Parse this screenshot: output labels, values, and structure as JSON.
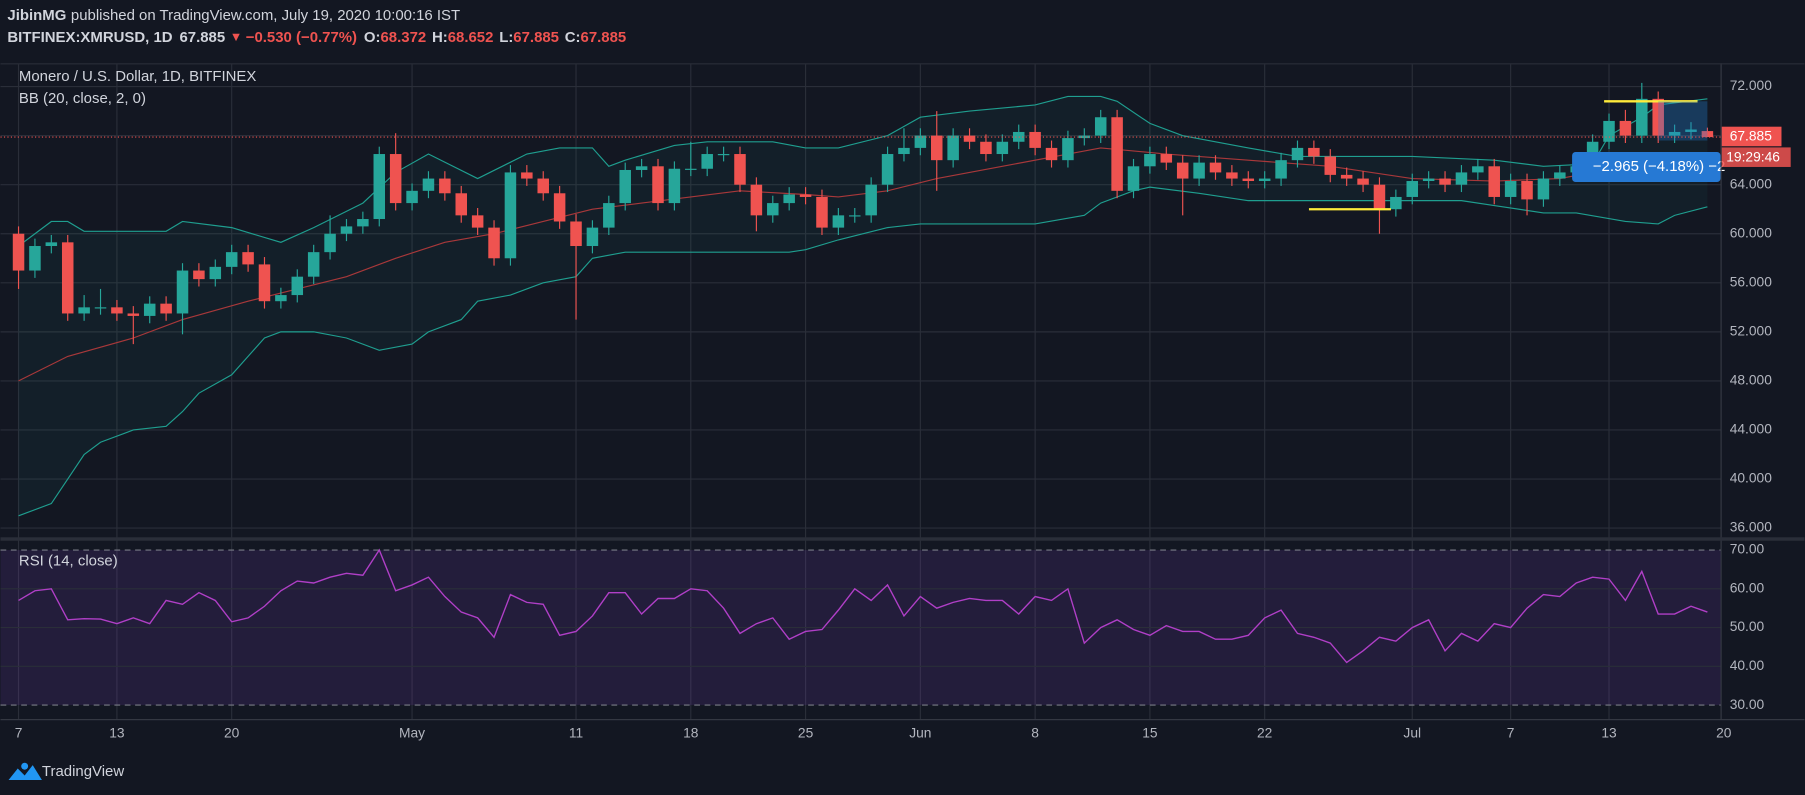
{
  "header": {
    "publisher": "JibinMG",
    "published": "published on TradingView.com, July 19, 2020 10:00:16 IST",
    "symbol": "BITFINEX:XMRUSD, 1D",
    "last": "67.885",
    "arrow": "▼",
    "change": "−0.530 (−0.77%)",
    "ohlc": [
      {
        "key": "O:",
        "value": "68.372"
      },
      {
        "key": "H:",
        "value": "68.652"
      },
      {
        "key": "L:",
        "value": "67.885"
      },
      {
        "key": "C:",
        "value": "67.885"
      }
    ]
  },
  "chart_data": [
    {
      "type": "candlestick",
      "title": "Monero / U.S. Dollar, 1D, BITFINEX",
      "up_color": "#26a69a",
      "down_color": "#ef5350",
      "xlim": [
        -1.1,
        103.8
      ],
      "ylim": [
        35.25,
        73.9
      ],
      "xticks": [
        {
          "value": 0,
          "label": "7"
        },
        {
          "value": 6,
          "label": "13"
        },
        {
          "value": 13,
          "label": "20"
        },
        {
          "value": 24,
          "label": "May"
        },
        {
          "value": 34,
          "label": "11"
        },
        {
          "value": 41,
          "label": "18"
        },
        {
          "value": 48,
          "label": "25"
        },
        {
          "value": 55,
          "label": "Jun"
        },
        {
          "value": 62,
          "label": "8"
        },
        {
          "value": 69,
          "label": "15"
        },
        {
          "value": 76,
          "label": "22"
        },
        {
          "value": 85,
          "label": "Jul"
        },
        {
          "value": 91,
          "label": "7"
        },
        {
          "value": 97,
          "label": "13"
        },
        {
          "value": 104,
          "label": "20"
        }
      ],
      "yticks": [
        {
          "value": 36,
          "label": "36.000"
        },
        {
          "value": 40,
          "label": "40.000"
        },
        {
          "value": 44,
          "label": "44.000"
        },
        {
          "value": 48,
          "label": "48.000"
        },
        {
          "value": 52,
          "label": "52.000"
        },
        {
          "value": 56,
          "label": "56.000"
        },
        {
          "value": 60,
          "label": "60.000"
        },
        {
          "value": 64,
          "label": "64.000"
        },
        {
          "value": 68,
          "label": "68.000"
        },
        {
          "value": 72,
          "label": "72.000"
        }
      ],
      "open": [
        60,
        57,
        59,
        59.3,
        53.5,
        54,
        54,
        53.5,
        53.3,
        54.3,
        53.5,
        57,
        56.3,
        57.3,
        58.5,
        57.5,
        54.5,
        55,
        56.5,
        58.5,
        60,
        60.6,
        61.2,
        66.5,
        62.5,
        63.5,
        64.5,
        63.3,
        61.5,
        60.5,
        58,
        65,
        64.5,
        63.3,
        61,
        59,
        60.5,
        62.5,
        65.2,
        65.5,
        62.5,
        65.3,
        65.3,
        66.5,
        66.5,
        64,
        61.5,
        62.5,
        63.2,
        63,
        60.5,
        61.5,
        61.5,
        64,
        66.5,
        67,
        68,
        66,
        68,
        67.5,
        66.5,
        67.5,
        68.3,
        67,
        66,
        67.8,
        68,
        69.5,
        63.5,
        65.5,
        66.5,
        65.8,
        64.5,
        65.8,
        65,
        64.5,
        64.3,
        64.5,
        66,
        67,
        66.3,
        64.8,
        64.5,
        64,
        62,
        63,
        64.3,
        64.5,
        64,
        65,
        65.5,
        63,
        64.3,
        62.8,
        64.5,
        65,
        65.5,
        67.5,
        69.2,
        68,
        71,
        68,
        68.3,
        68.372
      ],
      "high": [
        60.6,
        59.6,
        59.9,
        59.9,
        55,
        55.5,
        54.6,
        54.1,
        54.9,
        54.9,
        57.6,
        57.6,
        57.9,
        59.1,
        59.1,
        58.1,
        55.6,
        57.1,
        59.1,
        61.5,
        61.2,
        61.8,
        67.1,
        68.2,
        64.1,
        65.1,
        65.1,
        63.9,
        62.1,
        61.1,
        65.6,
        65.6,
        65.1,
        63.9,
        61.6,
        61.1,
        63.1,
        65.8,
        66.1,
        66.1,
        65.9,
        67.5,
        67.1,
        67.1,
        67.1,
        64.6,
        63.1,
        63.8,
        63.8,
        63.6,
        62.1,
        62.1,
        64.6,
        67.1,
        68.6,
        68.6,
        70,
        68.6,
        68.6,
        68.1,
        68.1,
        68.9,
        68.9,
        67.6,
        68.4,
        68.6,
        70.1,
        70.1,
        66.1,
        67.1,
        67.1,
        66.4,
        66.4,
        66.4,
        65.6,
        65.1,
        65.1,
        66.6,
        67.6,
        67.6,
        66.9,
        65.4,
        65.1,
        64.6,
        63.6,
        64.9,
        65.1,
        65.1,
        65.6,
        66.1,
        66.1,
        64.9,
        64.9,
        65.1,
        65.6,
        66.1,
        68.1,
        69.8,
        70.1,
        72.3,
        71.6,
        68.9,
        69.1,
        68.652
      ],
      "low": [
        55.5,
        56.4,
        58.4,
        52.9,
        52.9,
        53.4,
        52.9,
        51,
        52.7,
        52.9,
        51.8,
        55.7,
        55.7,
        56.7,
        56.9,
        53.9,
        53.9,
        54.4,
        55.9,
        57.9,
        59.4,
        60,
        60.6,
        61.9,
        61.9,
        62.9,
        62.7,
        60.9,
        59.9,
        57.4,
        57.4,
        63.9,
        62.7,
        60.4,
        53,
        58.4,
        59.9,
        61.9,
        64.6,
        61.9,
        61.9,
        64.7,
        64.7,
        65.9,
        63.4,
        60.2,
        60.9,
        61.9,
        62.4,
        59.9,
        59.9,
        60.9,
        60.9,
        63.4,
        65.9,
        66.4,
        63.5,
        65.4,
        66.9,
        65.9,
        65.9,
        66.9,
        66.4,
        65.4,
        65.4,
        67.2,
        67.4,
        62.9,
        62.9,
        64.9,
        65.2,
        61.5,
        63.9,
        64.4,
        63.9,
        63.7,
        63.7,
        63.9,
        65.4,
        65.7,
        64.2,
        63.9,
        63.4,
        60,
        61.4,
        62.4,
        63.7,
        63.4,
        63.4,
        64.4,
        62.4,
        62.4,
        61.5,
        62.2,
        63.9,
        64.4,
        64.9,
        66.9,
        67.4,
        67.4,
        67.4,
        67.4,
        67.7,
        67.885
      ],
      "close": [
        57,
        59,
        59.3,
        53.5,
        54,
        54,
        53.5,
        53.3,
        54.3,
        53.5,
        57,
        56.3,
        57.3,
        58.5,
        57.5,
        54.5,
        55,
        56.5,
        58.5,
        60,
        60.6,
        61.2,
        66.5,
        62.5,
        63.5,
        64.5,
        63.3,
        61.5,
        60.5,
        58,
        65,
        64.5,
        63.3,
        61,
        59,
        60.5,
        62.5,
        65.2,
        65.5,
        62.5,
        65.3,
        65.3,
        66.5,
        66.5,
        64,
        61.5,
        62.5,
        63.2,
        63,
        60.5,
        61.5,
        61.5,
        64,
        66.5,
        67,
        68,
        66,
        68,
        67.5,
        66.5,
        67.5,
        68.3,
        67,
        66,
        67.8,
        68,
        69.5,
        63.5,
        65.5,
        66.5,
        65.8,
        64.5,
        65.8,
        65,
        64.5,
        64.3,
        64.5,
        66,
        67,
        66.3,
        64.8,
        64.5,
        64,
        62,
        63,
        64.3,
        64.5,
        64,
        65,
        65.5,
        63,
        64.3,
        62.8,
        64.5,
        65,
        65.5,
        67.5,
        69.2,
        68,
        71,
        68,
        68.3,
        68.5,
        67.885
      ],
      "indicator": {
        "name": "BB (20, close, 2, 0)",
        "fill": "rgba(38,166,154,0.06)",
        "upper": {
          "color": "#1f9e8f",
          "x": [
            0,
            2,
            3,
            4,
            9,
            10,
            13,
            16,
            18,
            21,
            23,
            25,
            28,
            31,
            33,
            35,
            36,
            37,
            40,
            42,
            46,
            48,
            50,
            53,
            55,
            58,
            62,
            64,
            66,
            67,
            69,
            71,
            75,
            78,
            85,
            90,
            93,
            96,
            97,
            99,
            100,
            103
          ],
          "values": [
            59,
            61,
            61,
            60.2,
            60.2,
            61,
            60.5,
            59.3,
            60.5,
            62.5,
            65,
            66.5,
            64.5,
            66.5,
            67,
            67,
            65.5,
            66,
            67.2,
            67.5,
            67.5,
            67,
            67,
            68,
            69.5,
            70,
            70.5,
            71.2,
            71.2,
            70.8,
            69,
            68,
            67,
            66.3,
            66.3,
            66,
            65.5,
            65.7,
            68,
            69.5,
            70.5,
            71
          ]
        },
        "basis": {
          "color": "#a8383a",
          "x": [
            0,
            3,
            7,
            10,
            14,
            17,
            20,
            23,
            26,
            29,
            32,
            35,
            38,
            41,
            44,
            48,
            50,
            53,
            56,
            60,
            64,
            66,
            70,
            75,
            80,
            85,
            90,
            94,
            98,
            103
          ],
          "values": [
            48,
            50,
            51.5,
            53,
            54.5,
            55.5,
            56.5,
            58,
            59.3,
            60,
            61,
            62,
            62.5,
            63,
            63.5,
            63.2,
            63,
            63.5,
            64.5,
            65.5,
            66.5,
            67,
            66.5,
            66,
            65.5,
            64.5,
            64.3,
            64.5,
            65.5,
            66.2
          ]
        },
        "lower": {
          "color": "#1f9e8f",
          "x": [
            0,
            2,
            3,
            4,
            5,
            7,
            9,
            10,
            11,
            13,
            14,
            15,
            16,
            18,
            20,
            22,
            24,
            25,
            27,
            28,
            30,
            32,
            34,
            35,
            37,
            47,
            48,
            50,
            53,
            55,
            62,
            65,
            66,
            68,
            69,
            72,
            75,
            88,
            90,
            93,
            95,
            98,
            100,
            101,
            103
          ],
          "values": [
            37,
            38,
            40,
            42,
            43,
            44,
            44.3,
            45.5,
            47,
            48.5,
            50,
            51.5,
            52,
            52,
            51.5,
            50.5,
            51,
            52,
            53,
            54.5,
            55,
            56,
            56.5,
            58,
            58.5,
            58.5,
            58.7,
            59.5,
            60.5,
            60.8,
            60.8,
            61.5,
            62.5,
            63.5,
            63.8,
            63.3,
            62.7,
            62.7,
            62.3,
            61.7,
            61.7,
            61,
            60.8,
            61.5,
            62.2
          ]
        }
      },
      "last_price": {
        "value": 67.885,
        "label": "67.885",
        "countdown": "19:29:46",
        "color": "#ef5350"
      },
      "annotations": [
        {
          "start": 78.7,
          "end": 83.7,
          "price": 62.0,
          "color": "#ffeb3b"
        },
        {
          "start": 96.7,
          "end": 102.4,
          "price": 70.8,
          "color": "#ffeb3b"
        }
      ],
      "measure": {
        "start": 100,
        "end": 103,
        "top": 70.8,
        "bottom": 67.6,
        "label": "−2.965 (−4.18%) −2",
        "color": "#2679d4"
      }
    },
    {
      "type": "line",
      "title": "RSI (14, close)",
      "color": "#b03fc7",
      "ylim": [
        26.4,
        72.4
      ],
      "band": [
        30,
        70
      ],
      "band_color": "rgba(126,60,194,0.16)",
      "yticks": [
        {
          "value": 30,
          "label": "30.00"
        },
        {
          "value": 40,
          "label": "40.00"
        },
        {
          "value": 50,
          "label": "50.00"
        },
        {
          "value": 60,
          "label": "60.00"
        },
        {
          "value": 70,
          "label": "70.00"
        }
      ],
      "values": [
        57,
        59.5,
        60,
        52,
        52.3,
        52.2,
        51,
        52.5,
        51,
        57,
        56,
        59,
        57,
        51.5,
        52.5,
        55.5,
        59.5,
        62,
        61.5,
        63,
        64,
        63.5,
        70,
        59.5,
        61,
        63,
        58,
        54,
        52.5,
        47.5,
        58.5,
        56.5,
        56,
        48,
        49,
        53,
        59,
        59,
        53.5,
        57.5,
        57.5,
        60,
        59.5,
        55,
        48.5,
        51,
        52.5,
        47,
        49,
        49.5,
        54.5,
        60,
        57,
        61,
        53,
        58,
        55,
        56.5,
        57.5,
        57,
        57,
        53.5,
        58,
        57,
        60,
        46,
        50,
        52,
        49.5,
        48,
        50.5,
        49,
        49,
        47,
        47,
        48,
        52.5,
        54.5,
        48.5,
        47.5,
        46,
        41,
        44,
        47.5,
        46.5,
        50,
        52,
        44,
        48.5,
        46.5,
        51,
        50,
        55,
        58.5,
        58,
        61.5,
        63,
        62.5,
        57,
        64.5,
        53.5,
        53.5,
        55.5,
        54
      ]
    }
  ],
  "footer": {
    "brand": "TradingView"
  }
}
